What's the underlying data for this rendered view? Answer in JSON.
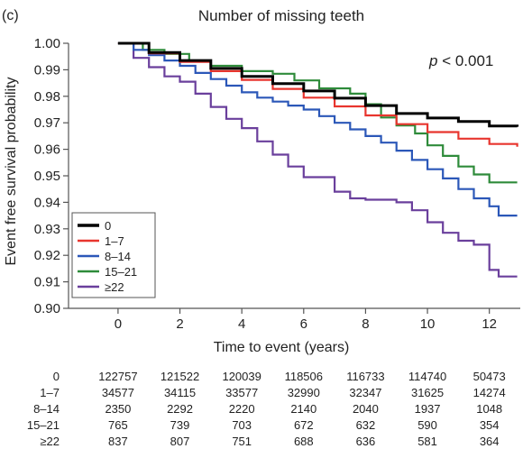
{
  "panel_label": "(c)",
  "chart_data": {
    "type": "line",
    "title": "Number of missing teeth",
    "xlabel": "Time to event (years)",
    "ylabel": "Event free survival probability",
    "annotation_p": "p",
    "annotation_rest": " < 0.001",
    "xlim": [
      -1.6,
      13.0
    ],
    "ylim": [
      0.9,
      1.0
    ],
    "xticks": [
      0,
      2,
      4,
      6,
      8,
      10,
      12
    ],
    "yticks": [
      0.9,
      0.91,
      0.92,
      0.93,
      0.94,
      0.95,
      0.96,
      0.97,
      0.98,
      0.99,
      1.0
    ],
    "ytick_labels": [
      "0.90",
      "0.91",
      "0.92",
      "0.93",
      "0.94",
      "0.95",
      "0.96",
      "0.97",
      "0.98",
      "0.99",
      "1.00"
    ],
    "grid": false,
    "legend_position": "bottom-left",
    "series": [
      {
        "name": "0",
        "color": "#000000",
        "points": [
          [
            0,
            1.0
          ],
          [
            1,
            0.9965
          ],
          [
            2,
            0.9935
          ],
          [
            3,
            0.9905
          ],
          [
            4,
            0.9875
          ],
          [
            5,
            0.9848
          ],
          [
            6,
            0.982
          ],
          [
            7,
            0.9793
          ],
          [
            8,
            0.9765
          ],
          [
            9,
            0.9735
          ],
          [
            10,
            0.9718
          ],
          [
            11,
            0.9705
          ],
          [
            12,
            0.9688
          ],
          [
            12.9,
            0.9685
          ]
        ]
      },
      {
        "name": "1–7",
        "color": "#e8352e",
        "points": [
          [
            0,
            1.0
          ],
          [
            1,
            0.9962
          ],
          [
            2,
            0.993
          ],
          [
            3,
            0.9895
          ],
          [
            4,
            0.9862
          ],
          [
            5,
            0.9828
          ],
          [
            6,
            0.9795
          ],
          [
            7,
            0.9762
          ],
          [
            8,
            0.9728
          ],
          [
            9,
            0.9695
          ],
          [
            10,
            0.9665
          ],
          [
            11,
            0.964
          ],
          [
            12,
            0.962
          ],
          [
            12.9,
            0.961
          ]
        ]
      },
      {
        "name": "8–14",
        "color": "#2b57b8",
        "points": [
          [
            0,
            1.0
          ],
          [
            0.5,
            0.9975
          ],
          [
            1,
            0.9955
          ],
          [
            1.5,
            0.9935
          ],
          [
            2,
            0.9915
          ],
          [
            2.5,
            0.9888
          ],
          [
            3,
            0.9865
          ],
          [
            3.5,
            0.984
          ],
          [
            4,
            0.9815
          ],
          [
            4.5,
            0.9795
          ],
          [
            5,
            0.978
          ],
          [
            5.5,
            0.9765
          ],
          [
            6,
            0.975
          ],
          [
            6.5,
            0.9725
          ],
          [
            7,
            0.97
          ],
          [
            7.5,
            0.9675
          ],
          [
            8,
            0.965
          ],
          [
            8.5,
            0.9625
          ],
          [
            9,
            0.9595
          ],
          [
            9.5,
            0.956
          ],
          [
            10,
            0.9525
          ],
          [
            10.5,
            0.949
          ],
          [
            11,
            0.945
          ],
          [
            11.5,
            0.9415
          ],
          [
            12,
            0.9385
          ],
          [
            12.3,
            0.935
          ],
          [
            12.9,
            0.935
          ]
        ]
      },
      {
        "name": "15–21",
        "color": "#2e8b3a",
        "points": [
          [
            0,
            1.0
          ],
          [
            0.8,
            0.9975
          ],
          [
            1.5,
            0.996
          ],
          [
            2.3,
            0.9935
          ],
          [
            3,
            0.9915
          ],
          [
            4,
            0.9895
          ],
          [
            5,
            0.9885
          ],
          [
            5.7,
            0.986
          ],
          [
            6.5,
            0.983
          ],
          [
            7.5,
            0.981
          ],
          [
            8,
            0.977
          ],
          [
            8.5,
            0.972
          ],
          [
            9,
            0.969
          ],
          [
            9.6,
            0.966
          ],
          [
            10,
            0.9615
          ],
          [
            10.5,
            0.9575
          ],
          [
            11,
            0.9535
          ],
          [
            11.5,
            0.9505
          ],
          [
            12,
            0.9475
          ],
          [
            12.9,
            0.9475
          ]
        ]
      },
      {
        "name": "≥22",
        "color": "#6a3f9c",
        "points": [
          [
            0,
            1.0
          ],
          [
            0.5,
            0.9945
          ],
          [
            1,
            0.991
          ],
          [
            1.5,
            0.9875
          ],
          [
            2,
            0.9855
          ],
          [
            2.5,
            0.981
          ],
          [
            3,
            0.976
          ],
          [
            3.5,
            0.9715
          ],
          [
            4,
            0.968
          ],
          [
            4.5,
            0.963
          ],
          [
            5,
            0.958
          ],
          [
            5.5,
            0.9535
          ],
          [
            6,
            0.9495
          ],
          [
            7,
            0.944
          ],
          [
            7.5,
            0.9415
          ],
          [
            8,
            0.941
          ],
          [
            9,
            0.94
          ],
          [
            9.5,
            0.937
          ],
          [
            10,
            0.9325
          ],
          [
            10.5,
            0.9285
          ],
          [
            11,
            0.9255
          ],
          [
            11.5,
            0.924
          ],
          [
            12,
            0.9145
          ],
          [
            12.3,
            0.912
          ],
          [
            12.9,
            0.912
          ]
        ]
      }
    ],
    "risk_table": {
      "rows": [
        {
          "label": "0",
          "values": [
            "122757",
            "121522",
            "120039",
            "118506",
            "116733",
            "114740",
            "50473"
          ]
        },
        {
          "label": "1–7",
          "values": [
            "34577",
            "34115",
            "33577",
            "32990",
            "32347",
            "31625",
            "14274"
          ]
        },
        {
          "label": "8–14",
          "values": [
            "2350",
            "2292",
            "2220",
            "2140",
            "2040",
            "1937",
            "1048"
          ]
        },
        {
          "label": "15–21",
          "values": [
            "765",
            "739",
            "703",
            "672",
            "632",
            "590",
            "354"
          ]
        },
        {
          "label": "≥22",
          "values": [
            "837",
            "807",
            "751",
            "688",
            "636",
            "581",
            "364"
          ]
        }
      ]
    }
  }
}
